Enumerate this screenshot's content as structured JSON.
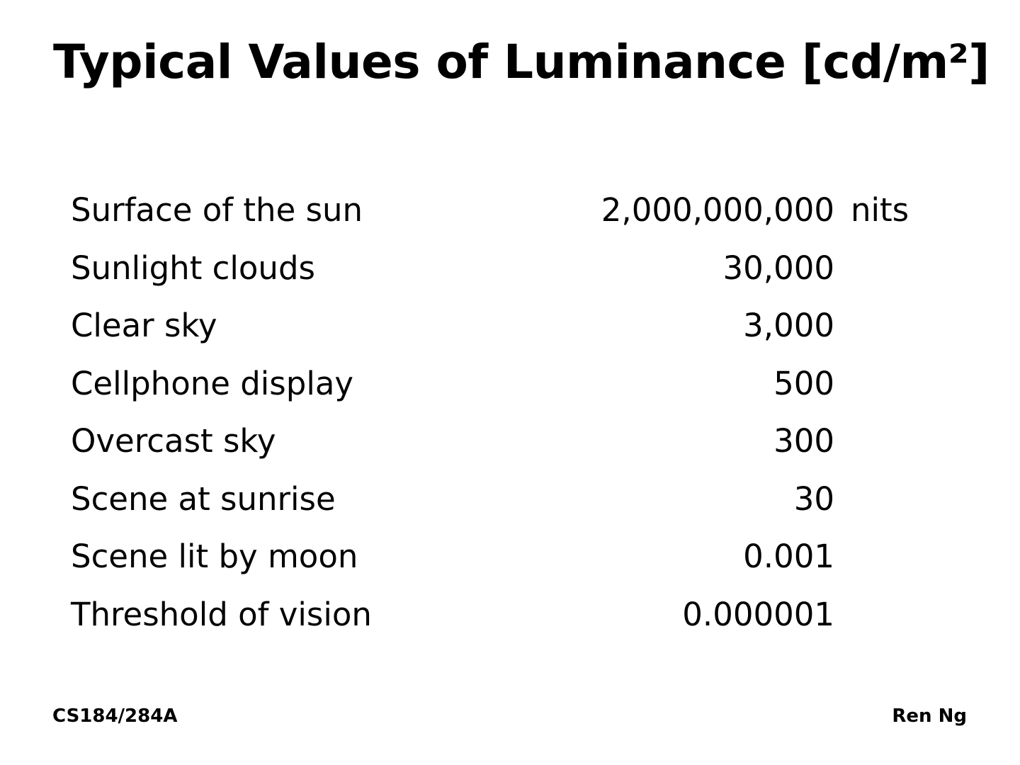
{
  "slide": {
    "title": "Typical Values of Luminance [cd/m²]"
  },
  "table": {
    "unit": "nits",
    "rows": [
      {
        "name": "Surface of the sun",
        "value": "2,000,000,000"
      },
      {
        "name": "Sunlight clouds",
        "value": "30,000"
      },
      {
        "name": "Clear sky",
        "value": "3,000"
      },
      {
        "name": "Cellphone display",
        "value": "500"
      },
      {
        "name": "Overcast sky",
        "value": "300"
      },
      {
        "name": "Scene at sunrise",
        "value": "30"
      },
      {
        "name": "Scene lit by moon",
        "value": "0.001"
      },
      {
        "name": "Threshold of vision",
        "value": "0.000001"
      }
    ]
  },
  "footer": {
    "course": "CS184/284A",
    "author": "Ren Ng"
  }
}
